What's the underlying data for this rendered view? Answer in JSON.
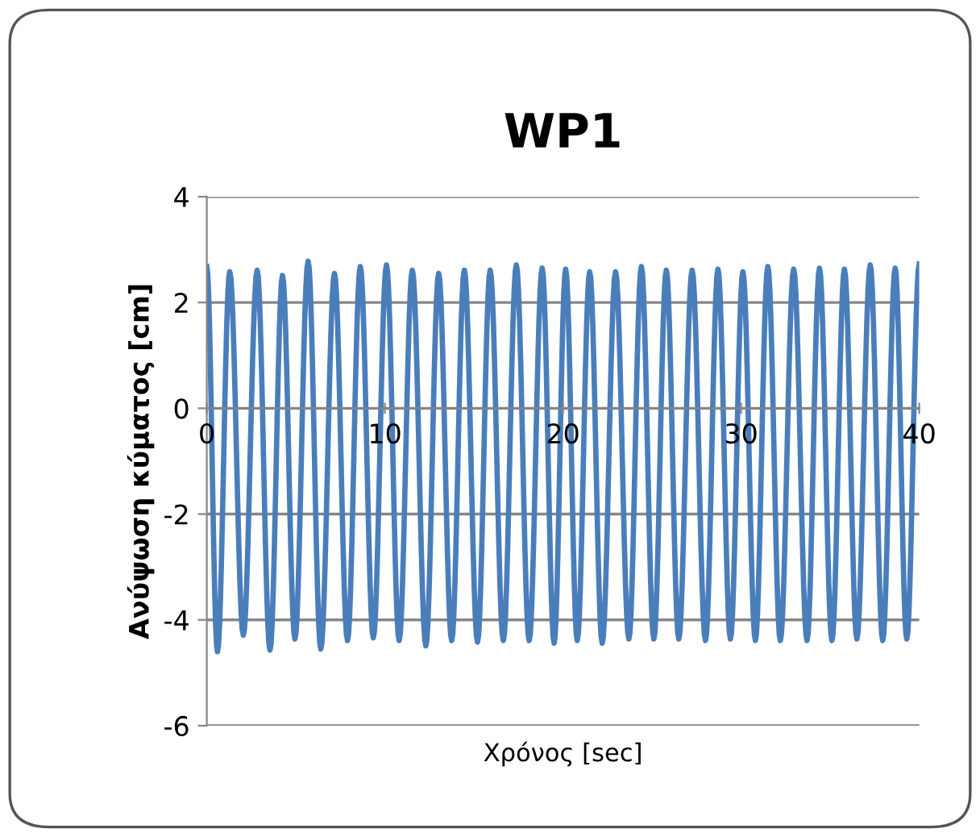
{
  "chart_data": {
    "type": "line",
    "title": "WP1",
    "xlabel": "Χρόνος [sec]",
    "ylabel": "Ανύψωση κύματος [cm]",
    "xlim": [
      0,
      40
    ],
    "xticks": [
      0,
      10,
      20,
      30,
      40
    ],
    "ylim": [
      -6,
      4
    ],
    "yticks": [
      -6,
      -4,
      -2,
      0,
      2,
      4
    ],
    "grid": "y",
    "marker": "none",
    "line_style": "solid",
    "series": [
      {
        "color": "#4a7ebb",
        "x": [
          0,
          0.6,
          1.29,
          2.05,
          2.83,
          3.55,
          4.25,
          4.95,
          5.69,
          6.4,
          7.17,
          7.9,
          8.62,
          9.35,
          10.09,
          10.8,
          11.54,
          12.3,
          13.02,
          13.75,
          14.46,
          15.2,
          15.91,
          16.65,
          17.38,
          18.1,
          18.83,
          19.5,
          20.15,
          20.8,
          21.5,
          22.2,
          22.95,
          23.7,
          24.4,
          25.1,
          25.8,
          26.5,
          27.25,
          28.0,
          28.7,
          29.4,
          30.1,
          30.8,
          31.5,
          32.2,
          32.95,
          33.7,
          34.4,
          35.1,
          35.8,
          36.5,
          37.25,
          37.95,
          38.65,
          39.3,
          40.0
        ],
        "values": [
          2.68,
          -4.6,
          2.58,
          -4.29,
          2.61,
          -4.57,
          2.51,
          -4.36,
          2.78,
          -4.55,
          2.55,
          -4.39,
          2.68,
          -4.34,
          2.71,
          -4.39,
          2.61,
          -4.49,
          2.55,
          -4.39,
          2.61,
          -4.42,
          2.61,
          -4.39,
          2.71,
          -4.39,
          2.65,
          -4.44,
          2.63,
          -4.39,
          2.58,
          -4.44,
          2.58,
          -4.36,
          2.68,
          -4.36,
          2.61,
          -4.36,
          2.61,
          -4.39,
          2.63,
          -4.36,
          2.58,
          -4.39,
          2.68,
          -4.39,
          2.63,
          -4.39,
          2.65,
          -4.39,
          2.63,
          -4.36,
          2.71,
          -4.39,
          2.65,
          -4.36,
          2.73
        ]
      }
    ]
  }
}
